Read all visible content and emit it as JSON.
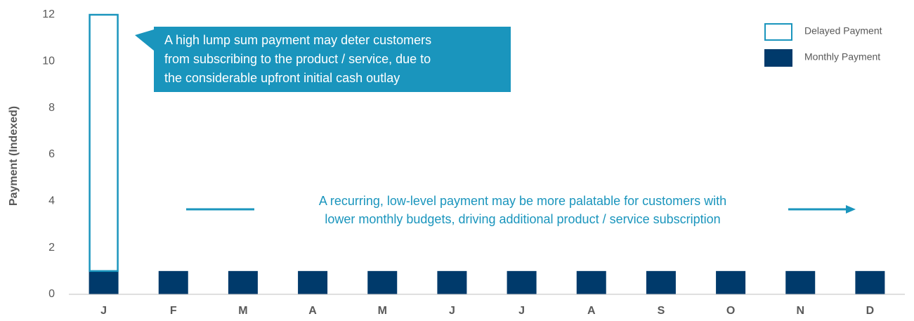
{
  "chart_data": {
    "type": "stacked_bar",
    "y_label": "Payment (Indexed)",
    "categories": [
      "J",
      "F",
      "M",
      "A",
      "M",
      "J",
      "J",
      "A",
      "S",
      "O",
      "N",
      "D"
    ],
    "series": [
      {
        "name": "Monthly Payment",
        "color": "#003a6b",
        "values": [
          1,
          1,
          1,
          1,
          1,
          1,
          1,
          1,
          1,
          1,
          1,
          1
        ]
      },
      {
        "name": "Delayed Payment",
        "color": "#1a95bd",
        "values": [
          11,
          0,
          0,
          0,
          0,
          0,
          0,
          0,
          0,
          0,
          0,
          0
        ]
      }
    ],
    "ylim": [
      0,
      12
    ],
    "yticks": [
      0,
      2,
      4,
      6,
      8,
      10,
      12
    ],
    "annotations": [
      {
        "lines": [
          "A high lump sum payment may deter customers",
          "from subscribing to the product / service, due to",
          "the considerable upfront initial cash outlay"
        ]
      },
      {
        "lines": [
          "A recurring, low-level payment may be more palatable for customers with",
          "lower monthly budgets, driving additional product / service subscription"
        ]
      }
    ]
  }
}
